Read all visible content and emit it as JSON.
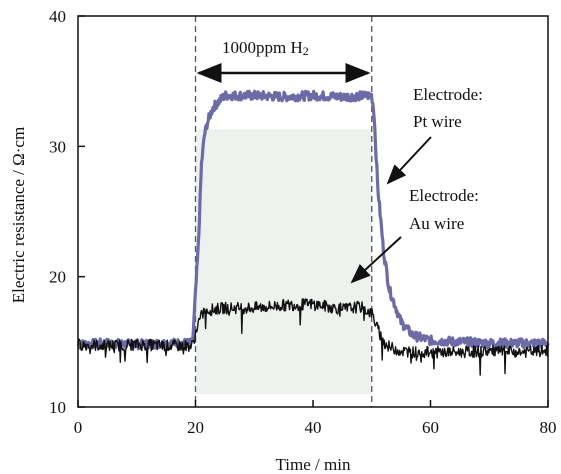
{
  "chart_data": {
    "type": "line",
    "xlabel": "Time / min",
    "ylabel": "Electric resistance / Ω·cm",
    "xlim": [
      0,
      80
    ],
    "ylim": [
      10,
      40
    ],
    "xticks": [
      0,
      20,
      40,
      60,
      80
    ],
    "yticks": [
      10,
      20,
      30,
      40
    ],
    "grid": false,
    "legend": "none",
    "exposure_window": {
      "start": 20,
      "end": 50,
      "label": "1000ppm H2",
      "shaded_y": [
        11,
        31.3
      ]
    },
    "series": [
      {
        "color": "#6e6aa6",
        "x": [
          0,
          5,
          10,
          15,
          19.5,
          20.5,
          21,
          21.5,
          22,
          23,
          25,
          30,
          35,
          40,
          45,
          50,
          50.4,
          51,
          52,
          53,
          55,
          57,
          60,
          65,
          70,
          75,
          80
        ],
        "values": [
          14.8,
          14.9,
          14.8,
          14.9,
          14.9,
          22.5,
          28.5,
          30.8,
          31.8,
          33.0,
          33.9,
          33.9,
          33.8,
          33.9,
          33.8,
          33.9,
          32.5,
          27.0,
          22.0,
          19.0,
          16.5,
          15.5,
          15.1,
          15.0,
          14.9,
          14.9,
          14.9
        ]
      },
      {
        "color": "#111111",
        "x": [
          0,
          5,
          10,
          15,
          19.5,
          20.5,
          21.5,
          25,
          30,
          35,
          40,
          45,
          48,
          50,
          51,
          52,
          53,
          55,
          57,
          60,
          65,
          70,
          75,
          80
        ],
        "values": [
          14.8,
          14.7,
          14.8,
          14.7,
          14.7,
          16.5,
          17.4,
          17.6,
          17.6,
          17.8,
          17.9,
          17.5,
          17.7,
          17.2,
          16.0,
          15.0,
          14.6,
          14.3,
          14.2,
          14.2,
          14.2,
          14.3,
          14.2,
          14.3
        ]
      }
    ],
    "annotations": {
      "window_label_text": "1000ppm H",
      "window_label_sub": "2",
      "pt_label_line1": "Electrode:",
      "pt_label_line2": "Pt wire",
      "au_label_line1": "Electrode:",
      "au_label_line2": "Au wire"
    }
  }
}
